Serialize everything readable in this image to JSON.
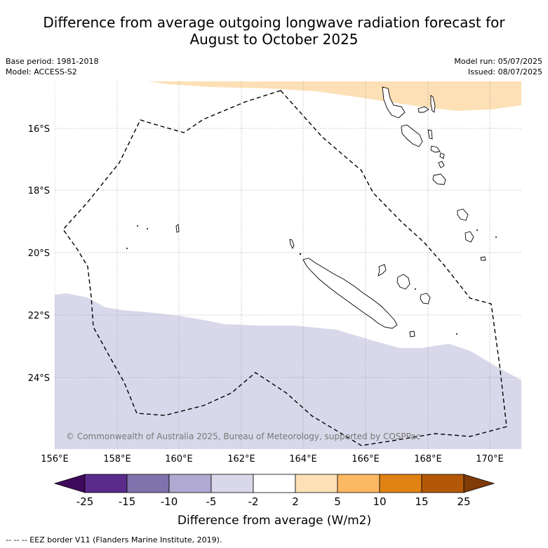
{
  "title_line1": "Difference from average outgoing longwave radiation forecast for",
  "title_line2": "August to October 2025",
  "meta": {
    "base_period": "Base period: 1981-2018",
    "model": "Model: ACCESS-S2",
    "model_run": "Model run: 05/07/2025",
    "issued": "Issued: 08/07/2025"
  },
  "map": {
    "lon_labels": [
      "156°E",
      "158°E",
      "160°E",
      "162°E",
      "164°E",
      "166°E",
      "168°E",
      "170°E"
    ],
    "lat_labels": [
      "16°S",
      "18°S",
      "20°S",
      "22°S",
      "24°S"
    ],
    "copyright": "© Commonwealth of Australia 2025, Bureau of Meteorology, supported by COSPPac",
    "colors": {
      "positive_anomaly": "#fde0b6",
      "negative_anomaly": "#d8d8ea",
      "gridline": "#999999"
    }
  },
  "colorbar": {
    "labels": [
      "-25",
      "-15",
      "-10",
      "-5",
      "-2",
      "2",
      "5",
      "10",
      "15",
      "25"
    ],
    "colors": [
      "#3f0a5e",
      "#5b2b8c",
      "#8072ad",
      "#b0aad2",
      "#d8d8ea",
      "#ffffff",
      "#fde0b6",
      "#fdb863",
      "#e08214",
      "#b35806",
      "#7f3b08"
    ],
    "title": "Difference from average (W/m2)"
  },
  "footnote": "--  --  -- EEZ border V11 (Flanders Marine Institute, 2019)."
}
